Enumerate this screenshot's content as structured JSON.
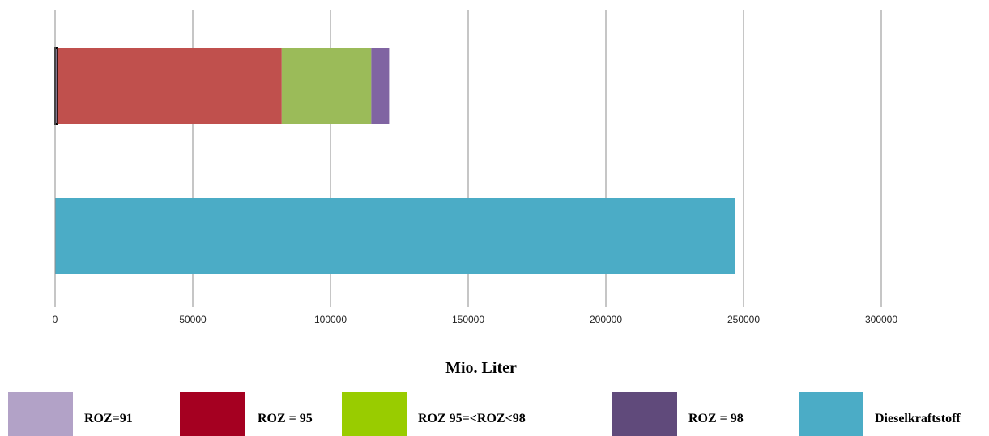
{
  "chart_data": {
    "type": "bar",
    "orientation": "horizontal",
    "stacked": true,
    "xlabel": "Mio. Liter",
    "xlim": [
      0,
      300000
    ],
    "xticks": [
      0,
      50000,
      100000,
      150000,
      200000,
      250000,
      300000
    ],
    "grid": "vertical",
    "legend_position": "bottom",
    "categories": [
      "",
      ""
    ],
    "series": [
      {
        "name": "ROZ=91",
        "color": "#B2A2C7",
        "values": [
          800,
          0
        ]
      },
      {
        "name": "ROZ = 95",
        "color": "#C0504D",
        "values": [
          81500,
          0
        ]
      },
      {
        "name": "ROZ 95=<ROZ<98",
        "color": "#9BBB59",
        "values": [
          32500,
          0
        ]
      },
      {
        "name": "ROZ = 98",
        "color": "#8064A2",
        "values": [
          6500,
          0
        ]
      },
      {
        "name": "Dieselkraftstoff",
        "color": "#4BACC6",
        "values": [
          0,
          247000
        ]
      }
    ],
    "legend": [
      {
        "label": "ROZ=91",
        "color": "#B2A2C7"
      },
      {
        "label": "ROZ = 95",
        "color": "#A50021"
      },
      {
        "label": "ROZ 95=<ROZ<98",
        "color": "#99CC00"
      },
      {
        "label": "ROZ = 98",
        "color": "#604A7B"
      },
      {
        "label": "Dieselkraftstoff",
        "color": "#4BACC6"
      }
    ]
  }
}
